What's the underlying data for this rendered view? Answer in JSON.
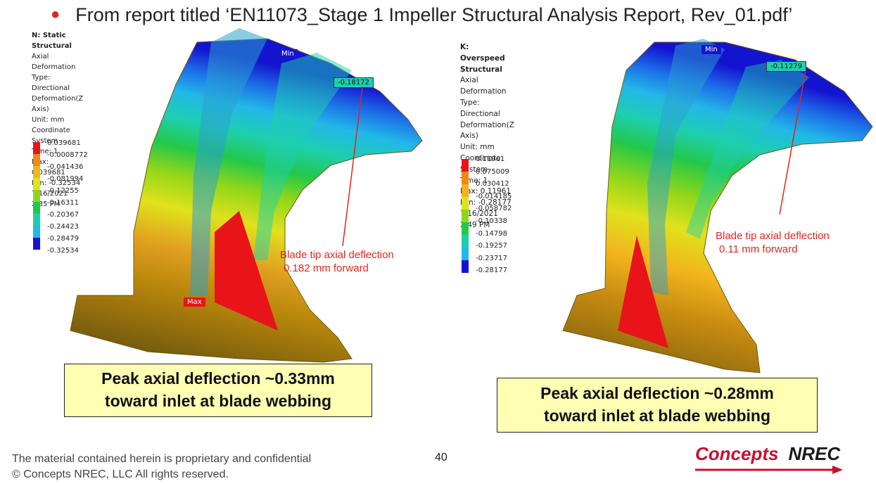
{
  "bullet": "From report titled ‘EN11073_Stage 1 Impeller Structural Analysis Report, Rev_01.pdf’",
  "left": {
    "info": [
      "N: Static Structural",
      "Axial Deformation",
      "Type: Directional Deformation(Z Axis)",
      "Unit: mm",
      "Coordinate System",
      "Time: 1",
      "Max: 0.039681",
      "Min: -0.32534",
      "7/16/2021 2:35 PM"
    ],
    "legend": [
      "0.039681",
      "-0.0008772",
      "-0.041436",
      "-0.081994",
      "-0.12255",
      "-0.16311",
      "-0.20367",
      "-0.24423",
      "-0.28479",
      "-0.32534"
    ],
    "min_tag": "Min",
    "max_tag": "Max",
    "probe": "-0.18172",
    "annotation_line1": "Blade tip axial deflection",
    "annotation_line2": "0.182 mm forward",
    "callout_line1": "Peak axial deflection ~0.33mm",
    "callout_line2": "toward inlet at blade webbing"
  },
  "right": {
    "info": [
      "K: Overspeed Structural",
      "Axial Deformation",
      "Type: Directional Deformation(Z Axis)",
      "Unit: mm",
      "Coordinate System",
      "Time: 1",
      "Max: 0.11961",
      "Min: -0.28177",
      "7/16/2021 2:49 PM"
    ],
    "legend": [
      "0.11961",
      "0.075009",
      "0.030412",
      "-0.014185",
      "-0.058782",
      "-0.10338",
      "-0.14798",
      "-0.19257",
      "-0.23717",
      "-0.28177"
    ],
    "min_tag": "Min",
    "probe": "-0.11279",
    "annotation_line1": "Blade tip axial deflection",
    "annotation_line2": "0.11 mm forward",
    "callout_line1": "Peak axial deflection ~0.28mm",
    "callout_line2": "toward inlet at blade webbing"
  },
  "legend_colors": [
    "#e8141a",
    "#f08a12",
    "#f2b41c",
    "#e0e21c",
    "#8fd61a",
    "#22c84a",
    "#1ecfae",
    "#22b8e8",
    "#1d6ee8",
    "#1414d0"
  ],
  "footer_line1": "The material contained herein is proprietary and confidential",
  "footer_line2": "© Concepts NREC, LLC  All rights reserved.",
  "page_number": "40",
  "logo_part1": "Concepts",
  "logo_part2": "NREC"
}
